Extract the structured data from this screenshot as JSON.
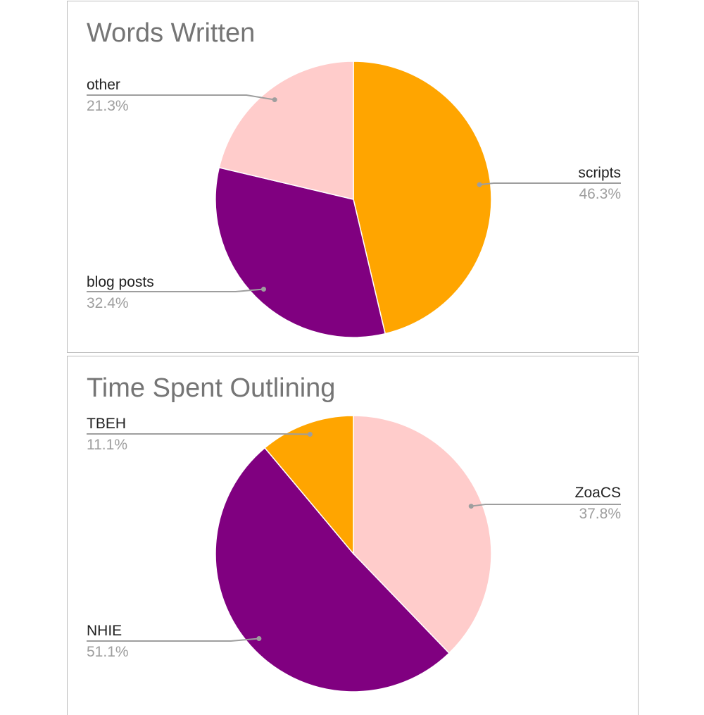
{
  "chart_data": [
    {
      "type": "pie",
      "title": "Words Written",
      "slices": [
        {
          "label": "scripts",
          "value": 46.3,
          "display": "46.3%",
          "color": "#FFA500",
          "side": "right"
        },
        {
          "label": "blog posts",
          "value": 32.4,
          "display": "32.4%",
          "color": "#800080",
          "side": "left"
        },
        {
          "label": "other",
          "value": 21.3,
          "display": "21.3%",
          "color": "#FFCCCB",
          "side": "left"
        }
      ],
      "start_angle_deg": 0,
      "direction": "clockwise"
    },
    {
      "type": "pie",
      "title": "Time Spent Outlining",
      "slices": [
        {
          "label": "ZoaCS",
          "value": 37.8,
          "display": "37.8%",
          "color": "#FFCCCB",
          "side": "right"
        },
        {
          "label": "NHIE",
          "value": 51.1,
          "display": "51.1%",
          "color": "#800080",
          "side": "left"
        },
        {
          "label": "TBEH",
          "value": 11.1,
          "display": "11.1%",
          "color": "#FFA500",
          "side": "left"
        }
      ],
      "start_angle_deg": 0,
      "direction": "clockwise"
    }
  ]
}
